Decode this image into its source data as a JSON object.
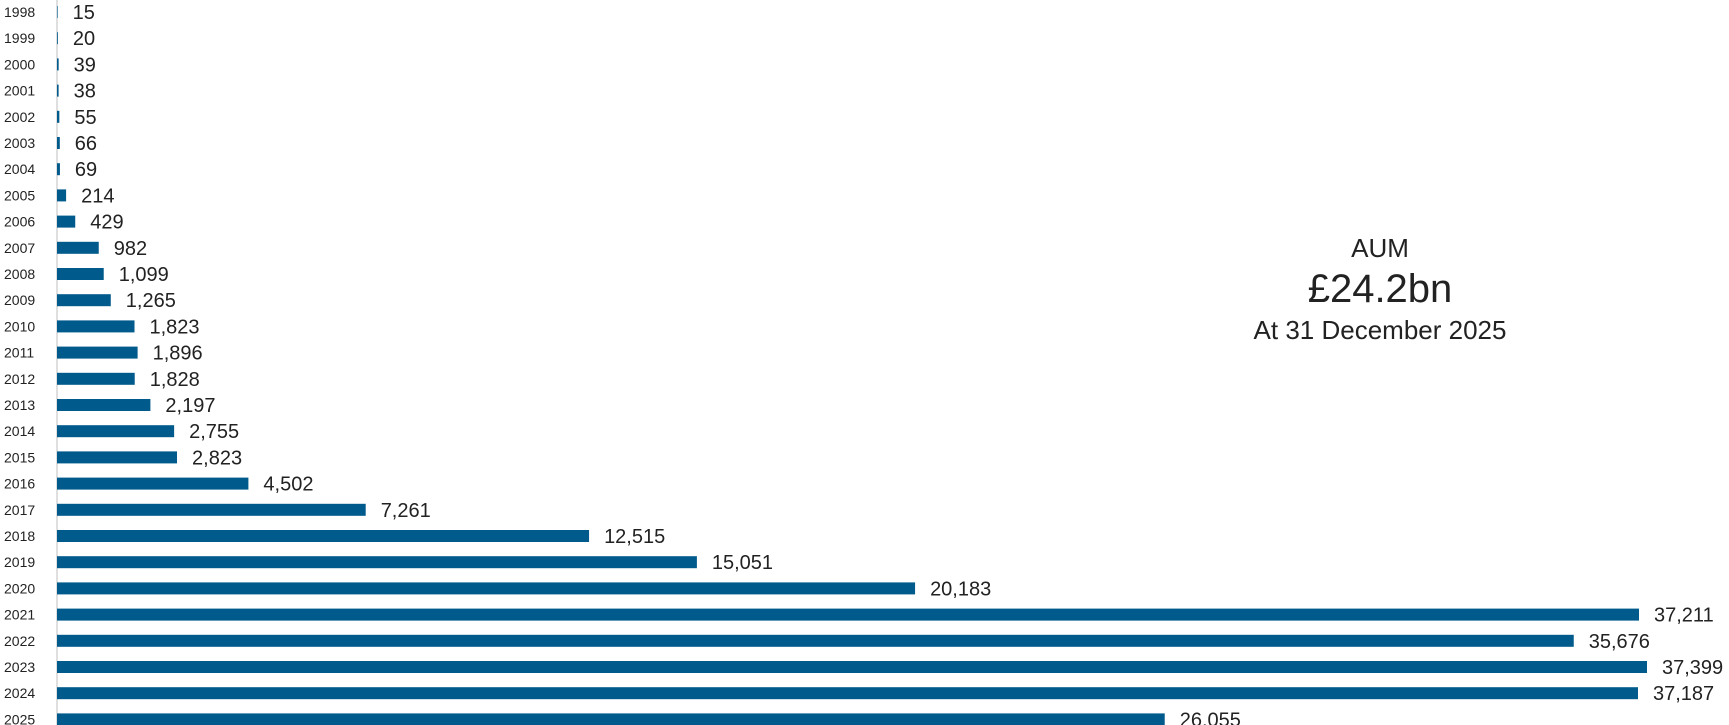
{
  "summary": {
    "label": "AUM",
    "value": "£24.2bn",
    "date": "At 31 December 2025"
  },
  "chart_data": {
    "type": "bar",
    "orientation": "horizontal",
    "title": "",
    "xlabel": "",
    "ylabel": "",
    "categories": [
      "1998",
      "1999",
      "2000",
      "2001",
      "2002",
      "2003",
      "2004",
      "2005",
      "2006",
      "2007",
      "2008",
      "2009",
      "2010",
      "2011",
      "2012",
      "2013",
      "2014",
      "2015",
      "2016",
      "2017",
      "2018",
      "2019",
      "2020",
      "2021",
      "2022",
      "2023",
      "2024",
      "2025"
    ],
    "values": [
      15,
      20,
      39,
      38,
      55,
      66,
      69,
      214,
      429,
      982,
      1099,
      1265,
      1823,
      1896,
      1828,
      2197,
      2755,
      2823,
      4502,
      7261,
      12515,
      15051,
      20183,
      37211,
      35676,
      37399,
      37187,
      26055
    ],
    "value_labels": [
      "15",
      "20",
      "39",
      "38",
      "55",
      "66",
      "69",
      "214",
      "429",
      "982",
      "1,099",
      "1,265",
      "1,823",
      "1,896",
      "1,828",
      "2,197",
      "2,755",
      "2,823",
      "4,502",
      "7,261",
      "12,515",
      "15,051",
      "20,183",
      "37,211",
      "35,676",
      "37,399",
      "37,187",
      "26,055"
    ],
    "xlim": [
      0,
      37399
    ],
    "grid": false,
    "legend": "none",
    "bar_color": "#005a8c",
    "axis_color": "#bfbfbf"
  }
}
